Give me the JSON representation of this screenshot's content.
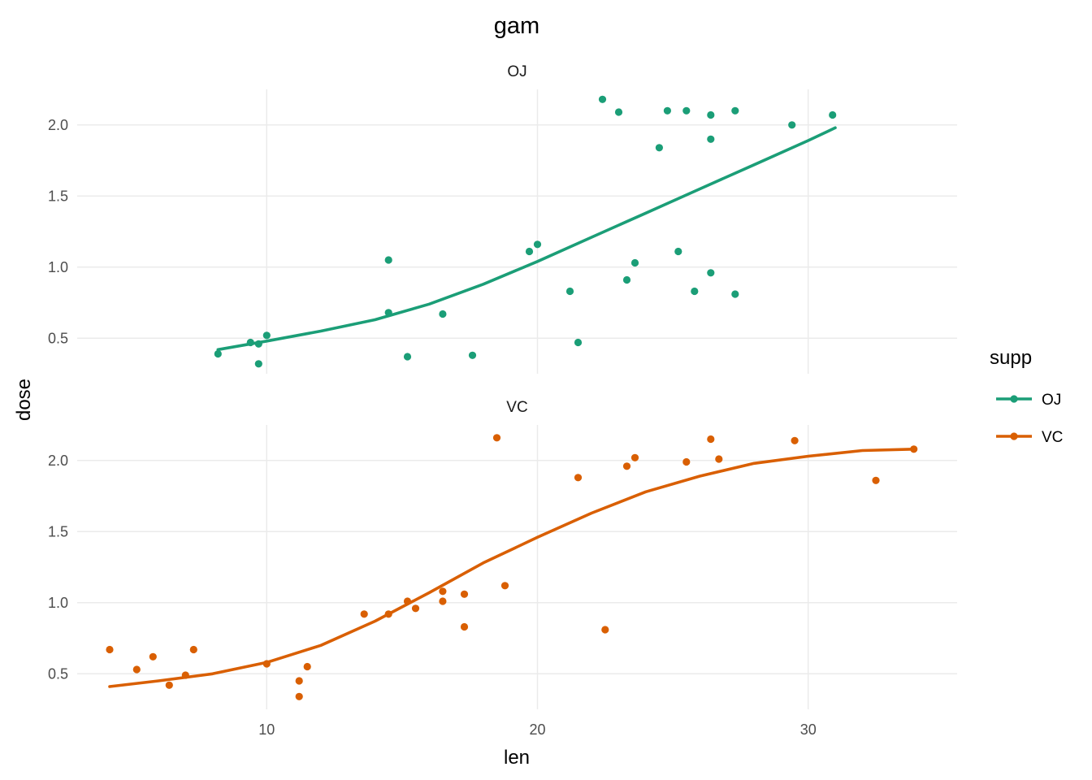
{
  "chart_data": {
    "type": "scatter",
    "title": "gam",
    "xlabel": "len",
    "ylabel": "dose",
    "xlim": [
      3.0,
      35.5
    ],
    "ylim": [
      0.25,
      2.25
    ],
    "x_ticks": [
      10,
      20,
      30
    ],
    "y_ticks": [
      0.5,
      1.0,
      1.5,
      2.0
    ],
    "y_tick_labels": [
      "0.5",
      "1.0",
      "1.5",
      "2.0"
    ],
    "grid": true,
    "legend": {
      "title": "supp",
      "position": "right"
    },
    "series": [
      {
        "name": "OJ",
        "color": "#1b9e77",
        "points": [
          [
            8.2,
            0.39
          ],
          [
            9.4,
            0.47
          ],
          [
            9.7,
            0.32
          ],
          [
            9.7,
            0.46
          ],
          [
            10.0,
            0.52
          ],
          [
            14.5,
            1.05
          ],
          [
            14.5,
            0.68
          ],
          [
            15.2,
            0.37
          ],
          [
            16.5,
            0.67
          ],
          [
            17.6,
            0.38
          ],
          [
            19.7,
            1.11
          ],
          [
            20.0,
            1.16
          ],
          [
            21.2,
            0.83
          ],
          [
            21.5,
            0.47
          ],
          [
            22.4,
            2.18
          ],
          [
            23.0,
            2.09
          ],
          [
            23.3,
            0.91
          ],
          [
            23.6,
            1.03
          ],
          [
            24.5,
            1.84
          ],
          [
            24.8,
            2.1
          ],
          [
            25.2,
            1.11
          ],
          [
            25.5,
            2.1
          ],
          [
            25.8,
            0.83
          ],
          [
            26.4,
            2.07
          ],
          [
            26.4,
            1.9
          ],
          [
            26.4,
            0.96
          ],
          [
            27.3,
            2.1
          ],
          [
            27.3,
            0.81
          ],
          [
            29.4,
            2.0
          ],
          [
            30.9,
            2.07
          ]
        ],
        "fit": [
          [
            8.2,
            0.42
          ],
          [
            10.0,
            0.48
          ],
          [
            12.0,
            0.55
          ],
          [
            14.0,
            0.63
          ],
          [
            16.0,
            0.74
          ],
          [
            18.0,
            0.88
          ],
          [
            20.0,
            1.04
          ],
          [
            22.0,
            1.21
          ],
          [
            24.0,
            1.38
          ],
          [
            26.0,
            1.55
          ],
          [
            28.0,
            1.72
          ],
          [
            30.0,
            1.89
          ],
          [
            31.0,
            1.98
          ]
        ]
      },
      {
        "name": "VC",
        "color": "#d95f02",
        "points": [
          [
            4.2,
            0.67
          ],
          [
            5.2,
            0.53
          ],
          [
            5.8,
            0.62
          ],
          [
            6.4,
            0.42
          ],
          [
            7.0,
            0.49
          ],
          [
            7.3,
            0.67
          ],
          [
            10.0,
            0.57
          ],
          [
            11.2,
            0.45
          ],
          [
            11.2,
            0.34
          ],
          [
            11.5,
            0.55
          ],
          [
            13.6,
            0.92
          ],
          [
            14.5,
            0.92
          ],
          [
            15.2,
            1.01
          ],
          [
            15.5,
            0.96
          ],
          [
            16.5,
            1.08
          ],
          [
            16.5,
            1.01
          ],
          [
            17.3,
            1.06
          ],
          [
            17.3,
            0.83
          ],
          [
            18.5,
            2.16
          ],
          [
            18.8,
            1.12
          ],
          [
            21.5,
            1.88
          ],
          [
            22.5,
            0.81
          ],
          [
            23.3,
            1.96
          ],
          [
            23.6,
            2.02
          ],
          [
            25.5,
            1.99
          ],
          [
            26.4,
            2.15
          ],
          [
            26.7,
            2.01
          ],
          [
            29.5,
            2.14
          ],
          [
            32.5,
            1.86
          ],
          [
            33.9,
            2.08
          ]
        ],
        "fit": [
          [
            4.2,
            0.41
          ],
          [
            6.0,
            0.45
          ],
          [
            8.0,
            0.5
          ],
          [
            10.0,
            0.58
          ],
          [
            12.0,
            0.7
          ],
          [
            14.0,
            0.87
          ],
          [
            16.0,
            1.07
          ],
          [
            18.0,
            1.28
          ],
          [
            20.0,
            1.46
          ],
          [
            22.0,
            1.63
          ],
          [
            24.0,
            1.78
          ],
          [
            26.0,
            1.89
          ],
          [
            28.0,
            1.98
          ],
          [
            30.0,
            2.03
          ],
          [
            32.0,
            2.07
          ],
          [
            33.9,
            2.08
          ]
        ]
      }
    ]
  }
}
